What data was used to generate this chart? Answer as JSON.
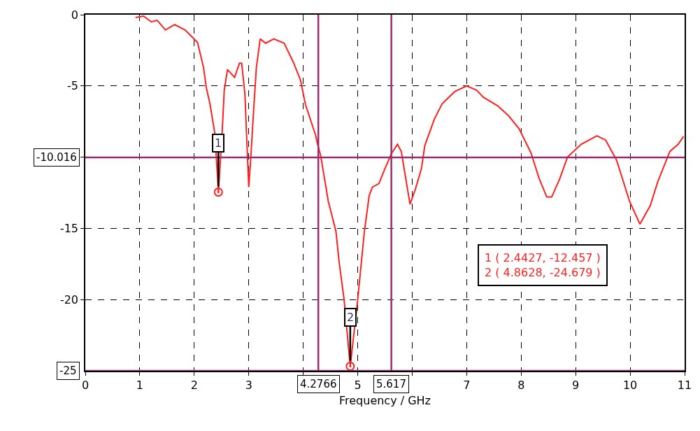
{
  "chart_data": {
    "type": "line",
    "xlabel": "Frequency / GHz",
    "xlim": [
      0,
      11
    ],
    "ylim": [
      -25,
      0
    ],
    "xticks": [
      0,
      1,
      2,
      3,
      {
        "value": 4,
        "label": null
      },
      5,
      {
        "value": 6,
        "label": null
      },
      7,
      8,
      9,
      10,
      11
    ],
    "yticks": [
      0,
      -5,
      {
        "value": -10,
        "label": null
      },
      -15,
      -20
    ],
    "grid": true,
    "line_style": "solid",
    "marker": "none",
    "series": [
      {
        "color": "#ff2020",
        "x": [
          0.92,
          1.07,
          1.21,
          1.32,
          1.47,
          1.64,
          1.83,
          1.96,
          2.06,
          2.17,
          2.22,
          2.29,
          2.38,
          2.4427,
          2.51,
          2.55,
          2.61,
          2.74,
          2.83,
          2.87,
          2.93,
          2.98,
          3.0,
          3.03,
          3.08,
          3.14,
          3.21,
          3.31,
          3.46,
          3.65,
          3.82,
          3.95,
          4.04,
          4.23,
          4.25,
          4.32,
          4.46,
          4.6,
          4.66,
          4.75,
          4.8628,
          5.0,
          5.12,
          5.21,
          5.27,
          5.39,
          5.5,
          5.62,
          5.73,
          5.8,
          5.89,
          5.96,
          6.05,
          6.17,
          6.23,
          6.41,
          6.55,
          6.78,
          7.0,
          7.18,
          7.31,
          7.57,
          7.77,
          7.96,
          8.18,
          8.33,
          8.47,
          8.56,
          8.71,
          8.85,
          9.1,
          9.39,
          9.55,
          9.75,
          9.99,
          10.18,
          10.37,
          10.51,
          10.73,
          10.88,
          10.98
        ],
        "values": [
          -0.2,
          -0.1,
          -0.5,
          -0.4,
          -1.07,
          -0.7,
          -1.07,
          -1.56,
          -1.95,
          -3.7,
          -5.1,
          -6.3,
          -8.4,
          -12.457,
          -8.4,
          -5.3,
          -3.85,
          -4.4,
          -3.4,
          -3.4,
          -5.6,
          -10.3,
          -12.1,
          -10.5,
          -7.3,
          -3.7,
          -1.7,
          -2.0,
          -1.7,
          -2.0,
          -3.35,
          -4.6,
          -6.3,
          -8.5,
          -8.9,
          -9.9,
          -13.1,
          -15.2,
          -17.4,
          -20,
          -24.679,
          -20,
          -15.3,
          -12.7,
          -12.1,
          -11.85,
          -10.8,
          -9.75,
          -9.1,
          -9.6,
          -11.7,
          -13.3,
          -12.35,
          -10.8,
          -9.2,
          -7.3,
          -6.25,
          -5.4,
          -5.0,
          -5.3,
          -5.8,
          -6.4,
          -7.1,
          -8.0,
          -9.7,
          -11.5,
          -12.8,
          -12.8,
          -11.5,
          -10.0,
          -9.1,
          -8.5,
          -8.8,
          -10.2,
          -13.1,
          -14.7,
          -13.4,
          -11.7,
          -9.6,
          -9.1,
          -8.55
        ]
      },
      {
        "type": "scatter",
        "marker": "circle",
        "color": "#ff2020",
        "x": [
          2.4427,
          4.8628
        ],
        "values": [
          -12.457,
          -24.679
        ]
      }
    ],
    "ref_lines": [
      {
        "axis": "y",
        "value": -10.016,
        "label": "-10.016",
        "color": "#9b2b6f"
      },
      {
        "axis": "y",
        "value": -25,
        "label": "-25",
        "color": "#9b2b6f"
      },
      {
        "axis": "x",
        "value": 4.2766,
        "label": "4.2766",
        "color": "#9b2b6f"
      },
      {
        "axis": "x",
        "value": 5.617,
        "label": "5.617",
        "color": "#9b2b6f"
      }
    ],
    "annotations": [
      {
        "text": "1",
        "x": 2.4427,
        "y": -12.457
      },
      {
        "text": "2",
        "x": 4.8628,
        "y": -24.679
      },
      "1 ( 2.4427, -12.457 )",
      "2 ( 4.8628, -24.679 )"
    ]
  }
}
